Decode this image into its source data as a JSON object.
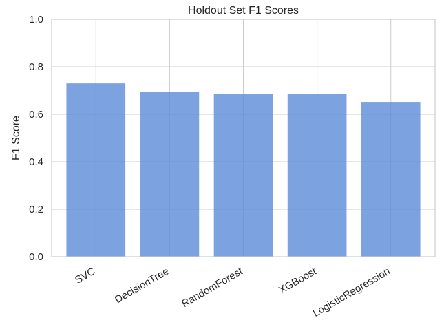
{
  "chart_data": {
    "type": "bar",
    "title": "Holdout Set F1 Scores",
    "xlabel": "",
    "ylabel": "F1 Score",
    "categories": [
      "SVC",
      "DecisionTree",
      "RandomForest",
      "XGBoost",
      "LogisticRegression"
    ],
    "values": [
      0.73,
      0.693,
      0.686,
      0.686,
      0.652
    ],
    "ylim": [
      0,
      1.0
    ],
    "yticks": [
      "0.0",
      "0.2",
      "0.4",
      "0.6",
      "0.8",
      "1.0"
    ],
    "grid": true,
    "bar_color": "#5b8bd8",
    "bar_opacity": 0.8
  }
}
